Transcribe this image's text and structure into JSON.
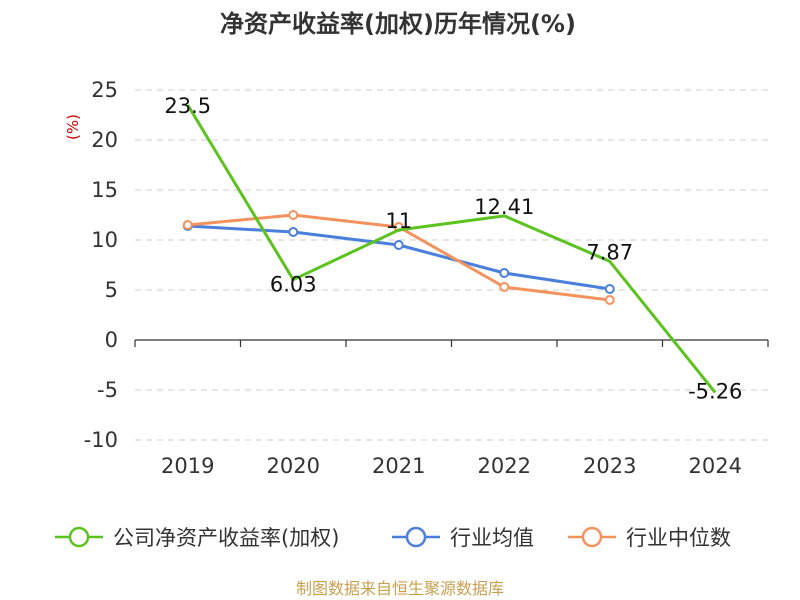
{
  "chart_data": {
    "type": "line",
    "title": "净资产收益率(加权)历年情况(%)",
    "ylabel": "(%)",
    "xlabel": "",
    "categories": [
      "2019",
      "2020",
      "2021",
      "2022",
      "2023",
      "2024"
    ],
    "ylim": [
      -10,
      25
    ],
    "yticks": [
      25,
      20,
      15,
      10,
      5,
      0,
      -5,
      -10
    ],
    "grid": true,
    "legend_position": "bottom",
    "series": [
      {
        "name": "公司净资产收益率(加权)",
        "color": "#5cc21e",
        "values": [
          23.5,
          6.03,
          11,
          12.41,
          7.87,
          -5.26
        ],
        "labels": [
          "23.5",
          "6.03",
          "11",
          "12.41",
          "7.87",
          "-5.26"
        ]
      },
      {
        "name": "行业均值",
        "color": "#4a7fdb",
        "values": [
          11.4,
          10.8,
          9.5,
          6.7,
          5.1,
          null
        ]
      },
      {
        "name": "行业中位数",
        "color": "#f4925e",
        "values": [
          11.5,
          12.5,
          11.3,
          5.3,
          4.0,
          null
        ]
      }
    ]
  },
  "source_text": "制图数据来自恒生聚源数据库",
  "colors": {
    "ylabel": "#cc0000",
    "source": "#c8a050",
    "grid": "#cccccc",
    "axis": "#333333"
  }
}
